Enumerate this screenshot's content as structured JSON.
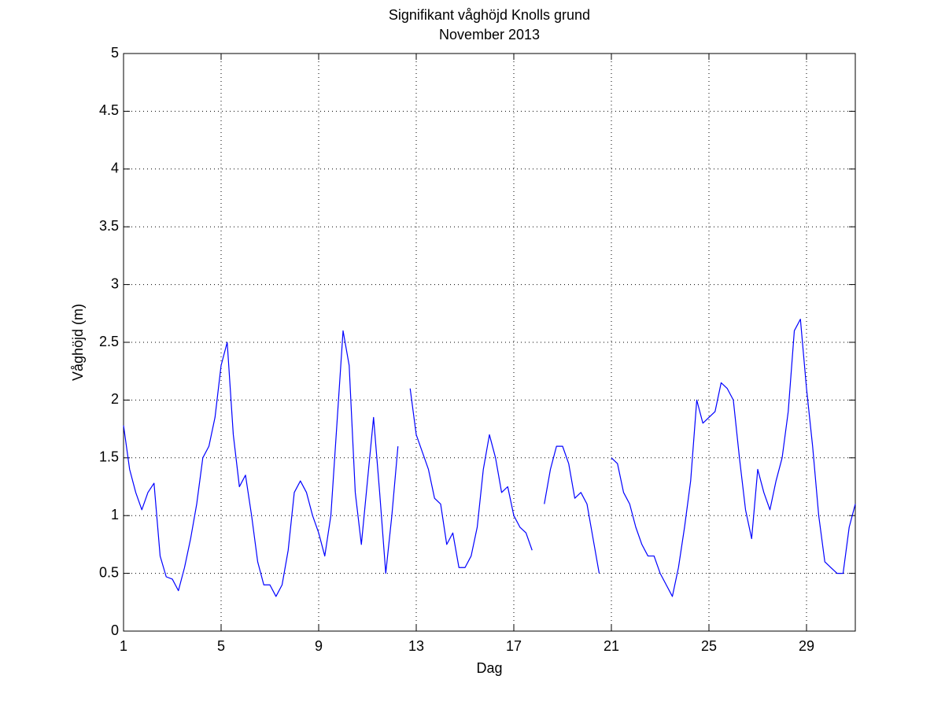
{
  "chart_data": {
    "type": "line",
    "title": "Signifikant våghöjd Knolls grund",
    "subtitle": "November 2013",
    "x_label": "Dag",
    "y_label": "Våghöjd (m)",
    "color": "#0000ff",
    "grid": true,
    "x": [
      1,
      1.25,
      1.5,
      1.75,
      2,
      2.25,
      2.5,
      2.75,
      3,
      3.25,
      3.5,
      3.75,
      4,
      4.25,
      4.5,
      4.75,
      5,
      5.25,
      5.5,
      5.75,
      6,
      6.25,
      6.5,
      6.75,
      7,
      7.25,
      7.5,
      7.75,
      8,
      8.25,
      8.5,
      8.75,
      9,
      9.25,
      9.5,
      9.75,
      10,
      10.25,
      10.5,
      10.75,
      11,
      11.25,
      11.5,
      11.75,
      12,
      12.25,
      12.5,
      12.75,
      13,
      13.25,
      13.5,
      13.75,
      14,
      14.25,
      14.5,
      14.75,
      15,
      15.25,
      15.5,
      15.75,
      16,
      16.25,
      16.5,
      16.75,
      17,
      17.25,
      17.5,
      17.75,
      18,
      18.25,
      18.5,
      18.75,
      19,
      19.25,
      19.5,
      19.75,
      20,
      20.25,
      20.5,
      20.75,
      21,
      21.25,
      21.5,
      21.75,
      22,
      22.25,
      22.5,
      22.75,
      23,
      23.25,
      23.5,
      23.75,
      24,
      24.25,
      24.5,
      24.75,
      25,
      25.25,
      25.5,
      25.75,
      26,
      26.25,
      26.5,
      26.75,
      27,
      27.25,
      27.5,
      27.75,
      28,
      28.25,
      28.5,
      28.75,
      29,
      29.25,
      29.5,
      29.75,
      30,
      30.25,
      30.5,
      30.75,
      31
    ],
    "values": [
      1.78,
      1.4,
      1.2,
      1.05,
      1.2,
      1.28,
      0.65,
      0.47,
      0.45,
      0.35,
      0.55,
      0.8,
      1.1,
      1.5,
      1.6,
      1.85,
      2.3,
      2.5,
      1.7,
      1.25,
      1.35,
      1.0,
      0.6,
      0.4,
      0.4,
      0.3,
      0.4,
      0.7,
      1.2,
      1.3,
      1.2,
      1.0,
      0.85,
      0.65,
      1.0,
      1.8,
      2.6,
      2.3,
      1.2,
      0.75,
      1.3,
      1.85,
      1.2,
      0.5,
      1.0,
      1.6,
      null,
      2.1,
      1.7,
      1.55,
      1.4,
      1.15,
      1.1,
      0.75,
      0.85,
      0.55,
      0.55,
      0.65,
      0.9,
      1.4,
      1.7,
      1.5,
      1.2,
      1.25,
      1.0,
      0.9,
      0.85,
      0.7,
      null,
      1.1,
      1.4,
      1.6,
      1.6,
      1.45,
      1.15,
      1.2,
      1.1,
      0.8,
      0.5,
      null,
      1.5,
      1.45,
      1.2,
      1.1,
      0.9,
      0.75,
      0.65,
      0.65,
      0.5,
      0.4,
      0.3,
      0.55,
      0.9,
      1.3,
      2.0,
      1.8,
      1.85,
      1.9,
      2.15,
      2.1,
      2.0,
      1.5,
      1.05,
      0.8,
      1.4,
      1.2,
      1.05,
      1.3,
      1.5,
      1.9,
      2.6,
      2.7,
      2.1,
      1.6,
      1.0,
      0.6,
      0.55,
      0.5,
      0.5,
      0.9,
      1.1
    ],
    "xlim": [
      1,
      31
    ],
    "xticks": [
      1,
      5,
      9,
      13,
      17,
      21,
      25,
      29
    ],
    "ylim": [
      0,
      5
    ],
    "yticks": [
      0,
      0.5,
      1,
      1.5,
      2,
      2.5,
      3,
      3.5,
      4,
      4.5,
      5
    ]
  }
}
